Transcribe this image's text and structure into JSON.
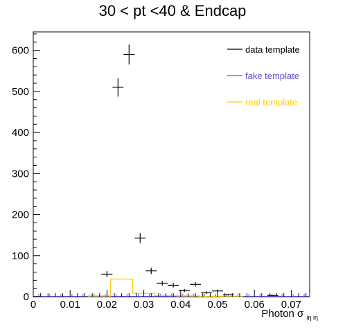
{
  "chart_data": {
    "type": "scatter",
    "title": "30 < pt <40 & Endcap",
    "xlabel_main": "Photon σ",
    "xlabel_sub": "iη iη",
    "xlim": [
      0,
      0.075
    ],
    "ylim": [
      0,
      645
    ],
    "x_ticks": [
      0,
      0.01,
      0.02,
      0.03,
      0.04,
      0.05,
      0.06,
      0.07
    ],
    "x_tick_labels": [
      "0",
      "0.01",
      "0.02",
      "0.03",
      "0.04",
      "0.05",
      "0.06",
      "0.07"
    ],
    "y_ticks": [
      0,
      100,
      200,
      300,
      400,
      500,
      600
    ],
    "y_tick_labels": [
      "0",
      "100",
      "200",
      "300",
      "400",
      "500",
      "600"
    ],
    "grid": false,
    "legend_position": "top-right",
    "series": [
      {
        "name": "data template",
        "color": "#000000",
        "style": "error-points",
        "points": [
          {
            "x": 0.02,
            "y": 55,
            "xerr": 0.0015,
            "yerr": 7.4
          },
          {
            "x": 0.023,
            "y": 510,
            "xerr": 0.0015,
            "yerr": 22.6
          },
          {
            "x": 0.026,
            "y": 590,
            "xerr": 0.0015,
            "yerr": 24.3
          },
          {
            "x": 0.029,
            "y": 143,
            "xerr": 0.0015,
            "yerr": 12.0
          },
          {
            "x": 0.032,
            "y": 63,
            "xerr": 0.0015,
            "yerr": 7.9
          },
          {
            "x": 0.035,
            "y": 33,
            "xerr": 0.0015,
            "yerr": 5.7
          },
          {
            "x": 0.038,
            "y": 28,
            "xerr": 0.0015,
            "yerr": 5.3
          },
          {
            "x": 0.041,
            "y": 15,
            "xerr": 0.0015,
            "yerr": 3.9
          },
          {
            "x": 0.044,
            "y": 30,
            "xerr": 0.0015,
            "yerr": 5.5
          },
          {
            "x": 0.047,
            "y": 10,
            "xerr": 0.0015,
            "yerr": 3.2
          },
          {
            "x": 0.05,
            "y": 14,
            "xerr": 0.0015,
            "yerr": 3.7
          },
          {
            "x": 0.053,
            "y": 5,
            "xerr": 0.0015,
            "yerr": 2.2
          },
          {
            "x": 0.065,
            "y": 3,
            "xerr": 0.0015,
            "yerr": 1.7
          }
        ]
      },
      {
        "name": "fake template",
        "color": "#5a4fcf",
        "style": "step",
        "bin_edges": [
          0,
          0.003,
          0.006,
          0.009,
          0.012,
          0.015,
          0.018,
          0.021,
          0.024,
          0.027,
          0.03,
          0.033,
          0.036,
          0.039,
          0.042,
          0.045,
          0.048,
          0.051,
          0.054,
          0.057,
          0.06,
          0.063,
          0.066,
          0.069,
          0.072,
          0.075
        ],
        "values": [
          0,
          0,
          0,
          0,
          0,
          0,
          0,
          0,
          0,
          0,
          0,
          0,
          0,
          0,
          0,
          0,
          0,
          0,
          0,
          0,
          0,
          0,
          0,
          0,
          0
        ]
      },
      {
        "name": "real template",
        "color": "#ffcc00",
        "style": "step",
        "bin_edges": [
          0.015,
          0.021,
          0.027,
          0.033,
          0.039,
          0.045,
          0.051,
          0.057
        ],
        "values": [
          2,
          43,
          8,
          3,
          2,
          1,
          0
        ]
      }
    ]
  }
}
